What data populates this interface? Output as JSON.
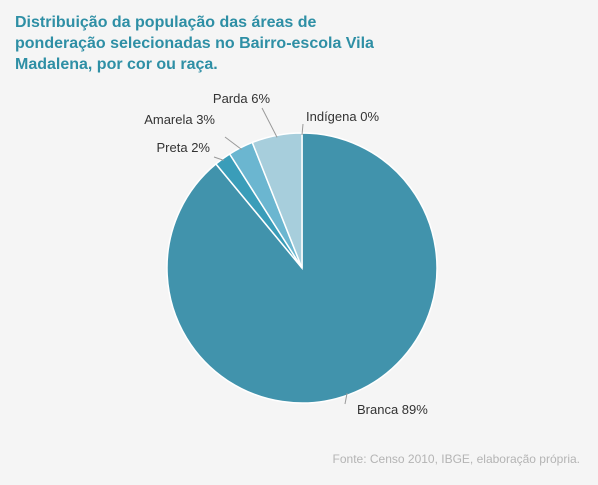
{
  "title": "Distribuição da população das áreas de ponderação selecionadas no Bairro-escola Vila Madalena, por cor ou raça.",
  "source": "Fonte: Censo 2010, IBGE,  elaboração própria.",
  "chart_data": {
    "type": "pie",
    "title": "Distribuição da população das áreas de ponderação selecionadas no Bairro-escola Vila Madalena, por cor ou raça.",
    "categories": [
      "Branca",
      "Preta",
      "Amarela",
      "Parda",
      "Indígena"
    ],
    "values": [
      89,
      2,
      3,
      6,
      0
    ],
    "labels": [
      "Branca 89%",
      "Preta 2%",
      "Amarela 3%",
      "Parda 6%",
      "Indígena 0%"
    ],
    "colors": [
      "#4193ac",
      "#3a9db9",
      "#6bb6d0",
      "#a7cedc",
      "#a7cedc"
    ],
    "legend": "none"
  }
}
